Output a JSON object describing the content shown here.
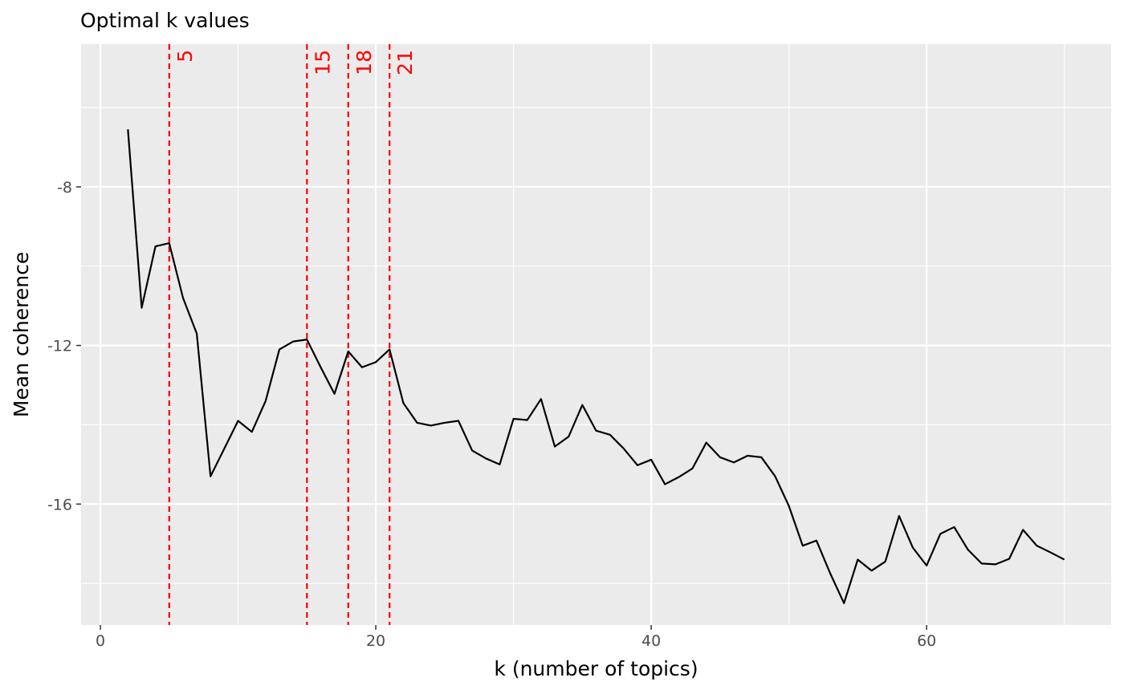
{
  "chart_data": {
    "type": "line",
    "title": "Optimal k values",
    "xlabel": "k (number of topics)",
    "ylabel": "Mean coherence",
    "xlim": [
      -1.4,
      73.4
    ],
    "ylim": [
      -19.05,
      -4.4
    ],
    "x_ticks": [
      0,
      20,
      40,
      60
    ],
    "x_tick_labels": [
      "0",
      "20",
      "40",
      "60"
    ],
    "y_ticks": [
      -8,
      -12,
      -16
    ],
    "y_tick_labels": [
      "-8",
      "-12",
      "-16"
    ],
    "x_minor_grid": [
      10,
      30,
      50,
      70
    ],
    "y_minor_grid": [
      -6,
      -10,
      -14,
      -18
    ],
    "grid": true,
    "background": "#ebebeb",
    "line_color": "#000000",
    "vline_color": "#ff0000",
    "optimal_k": [
      {
        "k": 5,
        "label": "5"
      },
      {
        "k": 15,
        "label": "15"
      },
      {
        "k": 18,
        "label": "18"
      },
      {
        "k": 21,
        "label": "21"
      }
    ],
    "series": [
      {
        "name": "Mean coherence",
        "x": [
          2,
          3,
          4,
          5,
          6,
          7,
          8,
          9,
          10,
          11,
          12,
          13,
          14,
          15,
          16,
          17,
          18,
          19,
          20,
          21,
          22,
          23,
          24,
          25,
          26,
          27,
          28,
          29,
          30,
          31,
          32,
          33,
          34,
          35,
          36,
          37,
          38,
          39,
          40,
          41,
          42,
          43,
          44,
          45,
          46,
          47,
          48,
          49,
          50,
          51,
          52,
          53,
          54,
          55,
          56,
          57,
          58,
          59,
          60,
          61,
          62,
          63,
          64,
          65,
          66,
          67,
          68,
          69,
          70
        ],
        "y": [
          -6.55,
          -11.05,
          -9.5,
          -9.42,
          -10.8,
          -11.7,
          -15.3,
          -14.6,
          -13.9,
          -14.18,
          -13.4,
          -12.1,
          -11.9,
          -11.85,
          -12.55,
          -13.22,
          -12.15,
          -12.55,
          -12.42,
          -12.1,
          -13.45,
          -13.95,
          -14.02,
          -13.95,
          -13.9,
          -14.65,
          -14.85,
          -15,
          -13.85,
          -13.88,
          -13.35,
          -14.55,
          -14.3,
          -13.5,
          -14.15,
          -14.25,
          -14.6,
          -15.02,
          -14.88,
          -15.5,
          -15.32,
          -15.1,
          -14.45,
          -14.82,
          -14.95,
          -14.78,
          -14.82,
          -15.3,
          -16.05,
          -17.05,
          -16.92,
          -17.75,
          -18.5,
          -17.4,
          -17.68,
          -17.45,
          -16.3,
          -17.1,
          -17.55,
          -16.75,
          -16.58,
          -17.15,
          -17.5,
          -17.52,
          -17.38,
          -16.65,
          -17.05,
          -17.22,
          -17.4
        ]
      }
    ]
  }
}
